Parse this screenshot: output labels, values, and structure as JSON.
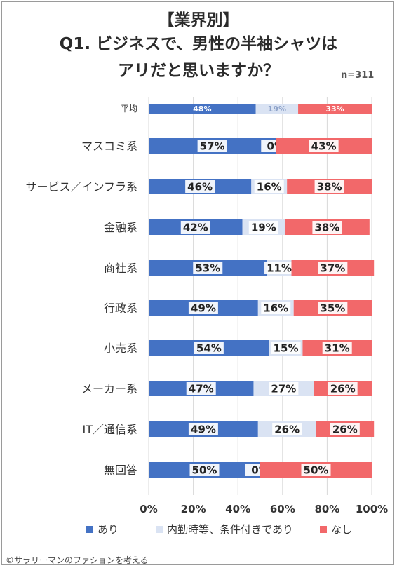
{
  "title": {
    "line1": "【業界別】",
    "line2": "Q1. ビジネスで、男性の半袖シャツは",
    "line3": "アリだと思いますか？"
  },
  "sample_size": "n=311",
  "footer": "©サラリーマンのファションを考える",
  "colors": {
    "ari": "#4472c4",
    "conditional": "#dae3f3",
    "nashi": "#f2686a"
  },
  "chart_data": {
    "type": "bar",
    "orientation": "horizontal-stacked-100",
    "categories": [
      "平均",
      "マスコミ系",
      "サービス／インフラ系",
      "金融系",
      "商社系",
      "行政系",
      "小売系",
      "メーカー系",
      "IT／通信系",
      "無回答"
    ],
    "series": [
      {
        "name": "あり",
        "values": [
          48,
          57,
          46,
          42,
          53,
          49,
          54,
          47,
          49,
          50
        ]
      },
      {
        "name": "内勤時等、条件付きであり",
        "values": [
          19,
          0,
          16,
          19,
          11,
          16,
          15,
          27,
          26,
          0
        ]
      },
      {
        "name": "なし",
        "values": [
          33,
          43,
          38,
          38,
          37,
          35,
          31,
          26,
          26,
          50
        ]
      }
    ],
    "xlim": [
      0,
      100
    ],
    "xticks": [
      "0%",
      "20%",
      "40%",
      "60%",
      "80%",
      "100%"
    ],
    "grid": true,
    "legend": "bottom"
  }
}
